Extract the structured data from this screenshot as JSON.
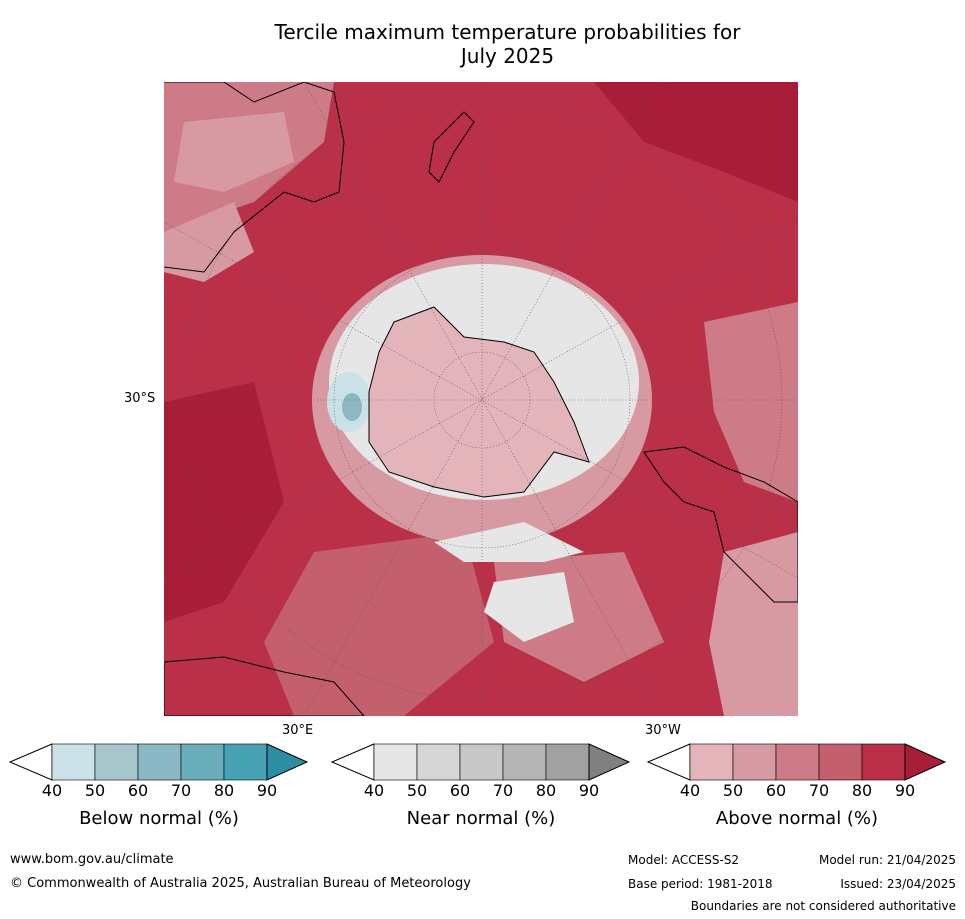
{
  "title_line1": "Tercile maximum temperature probabilities for",
  "title_line2": "July 2025",
  "map": {
    "lat_label": "30°S",
    "lon_label_east": "30°E",
    "lon_label_west": "30°W",
    "region": "Southern Hemisphere polar stereographic"
  },
  "legends": [
    {
      "label": "Below normal (%)",
      "ticks": [
        "40",
        "50",
        "60",
        "70",
        "80",
        "90"
      ],
      "colors": [
        "#c9e1e7",
        "#a7c6cc",
        "#8bb8c2",
        "#6aadbb",
        "#46a2b3",
        "#2d8ea3"
      ]
    },
    {
      "label": "Near normal (%)",
      "ticks": [
        "40",
        "50",
        "60",
        "70",
        "80",
        "90"
      ],
      "colors": [
        "#e6e6e6",
        "#d6d6d6",
        "#c8c8c8",
        "#b5b5b5",
        "#a1a1a1",
        "#808080"
      ]
    },
    {
      "label": "Above normal (%)",
      "ticks": [
        "40",
        "50",
        "60",
        "70",
        "80",
        "90"
      ],
      "colors": [
        "#e3b5bb",
        "#d79aa2",
        "#cd7b86",
        "#c4606d",
        "#bb3049",
        "#a81d38"
      ]
    }
  ],
  "footer": {
    "url": "www.bom.gov.au/climate",
    "copyright": "© Commonwealth of Australia 2025, Australian Bureau of Meteorology",
    "model": "Model: ACCESS-S2",
    "base_period": "Base period: 1981-2018",
    "model_run": "Model run: 21/04/2025",
    "issued": "Issued: 23/04/2025",
    "disclaimer": "Boundaries are not considered authoritative"
  }
}
